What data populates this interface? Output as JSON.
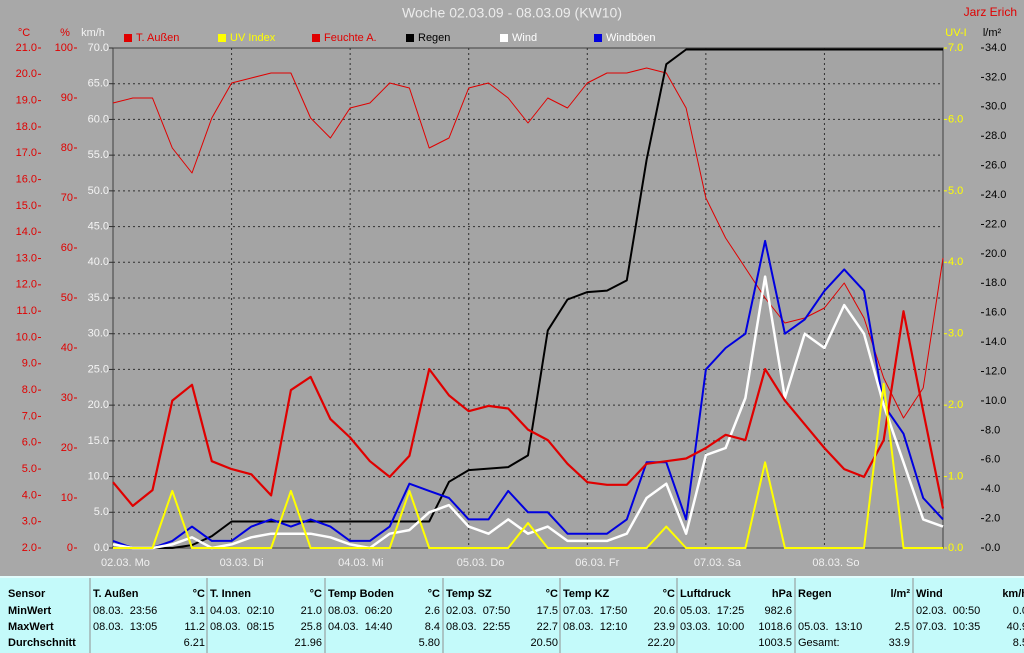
{
  "chart_data": {
    "type": "line",
    "title": "Woche 02.03.09 - 08.03.09 (KW10)",
    "author": "Jarz Erich",
    "grid": true,
    "xlim": [
      0,
      168
    ],
    "xticks": [
      {
        "value": 0,
        "label": "02.03. Mo"
      },
      {
        "value": 24,
        "label": "03.03. Di"
      },
      {
        "value": 48,
        "label": "04.03. Mi"
      },
      {
        "value": 72,
        "label": "05.03. Do"
      },
      {
        "value": 96,
        "label": "06.03. Fr"
      },
      {
        "value": 120,
        "label": "07.03. Sa"
      },
      {
        "value": 144,
        "label": "08.03. So"
      }
    ],
    "axes": {
      "temp": {
        "label": "°C",
        "color": "#e00000",
        "lim": [
          2,
          21
        ],
        "ticks": [
          {
            "value": 2,
            "label": "2.0"
          },
          {
            "value": 3,
            "label": "3.0"
          },
          {
            "value": 4,
            "label": "4.0"
          },
          {
            "value": 5,
            "label": "5.0"
          },
          {
            "value": 6,
            "label": "6.0"
          },
          {
            "value": 7,
            "label": "7.0"
          },
          {
            "value": 8,
            "label": "8.0"
          },
          {
            "value": 9,
            "label": "9.0"
          },
          {
            "value": 10,
            "label": "10.0"
          },
          {
            "value": 11,
            "label": "11.0"
          },
          {
            "value": 12,
            "label": "12.0"
          },
          {
            "value": 13,
            "label": "13.0"
          },
          {
            "value": 14,
            "label": "14.0"
          },
          {
            "value": 15,
            "label": "15.0"
          },
          {
            "value": 16,
            "label": "16.0"
          },
          {
            "value": 17,
            "label": "17.0"
          },
          {
            "value": 18,
            "label": "18.0"
          },
          {
            "value": 19,
            "label": "19.0"
          },
          {
            "value": 20,
            "label": "20.0"
          },
          {
            "value": 21,
            "label": "21.0"
          }
        ]
      },
      "hum": {
        "label": "%",
        "color": "#e00000",
        "lim": [
          0,
          100
        ],
        "ticks": [
          0,
          10,
          20,
          30,
          40,
          50,
          60,
          70,
          80,
          90,
          100
        ]
      },
      "kmh": {
        "label": "km/h",
        "color": "#f4f4f4",
        "lim": [
          0,
          70
        ],
        "ticks": [
          {
            "value": 0,
            "label": "0.0"
          },
          {
            "value": 5,
            "label": "5.0"
          },
          {
            "value": 10,
            "label": "10.0"
          },
          {
            "value": 15,
            "label": "15.0"
          },
          {
            "value": 20,
            "label": "20.0"
          },
          {
            "value": 25,
            "label": "25.0"
          },
          {
            "value": 30,
            "label": "30.0"
          },
          {
            "value": 35,
            "label": "35.0"
          },
          {
            "value": 40,
            "label": "40.0"
          },
          {
            "value": 45,
            "label": "45.0"
          },
          {
            "value": 50,
            "label": "50.0"
          },
          {
            "value": 55,
            "label": "55.0"
          },
          {
            "value": 60,
            "label": "60.0"
          },
          {
            "value": 65,
            "label": "65.0"
          },
          {
            "value": 70,
            "label": "70.0"
          }
        ]
      },
      "uv": {
        "label": "UV-I",
        "color": "#ffff00",
        "lim": [
          0,
          7
        ],
        "ticks": [
          {
            "value": 0,
            "label": "0.0"
          },
          {
            "value": 1,
            "label": "1.0"
          },
          {
            "value": 2,
            "label": "2.0"
          },
          {
            "value": 3,
            "label": "3.0"
          },
          {
            "value": 4,
            "label": "4.0"
          },
          {
            "value": 5,
            "label": "5.0"
          },
          {
            "value": 6,
            "label": "6.0"
          },
          {
            "value": 7,
            "label": "7.0"
          }
        ]
      },
      "rain": {
        "label": "l/m²",
        "color": "#000000",
        "lim": [
          0,
          34
        ],
        "ticks": [
          {
            "value": 0,
            "label": "0.0"
          },
          {
            "value": 2,
            "label": "2.0"
          },
          {
            "value": 4,
            "label": "4.0"
          },
          {
            "value": 6,
            "label": "6.0"
          },
          {
            "value": 8,
            "label": "8.0"
          },
          {
            "value": 10,
            "label": "10.0"
          },
          {
            "value": 12,
            "label": "12.0"
          },
          {
            "value": 14,
            "label": "14.0"
          },
          {
            "value": 16,
            "label": "16.0"
          },
          {
            "value": 18,
            "label": "18.0"
          },
          {
            "value": 20,
            "label": "20.0"
          },
          {
            "value": 22,
            "label": "22.0"
          },
          {
            "value": 24,
            "label": "24.0"
          },
          {
            "value": 26,
            "label": "26.0"
          },
          {
            "value": 28,
            "label": "28.0"
          },
          {
            "value": 30,
            "label": "30.0"
          },
          {
            "value": 32,
            "label": "32.0"
          },
          {
            "value": 34,
            "label": "34.0"
          }
        ]
      }
    },
    "x": [
      0,
      4,
      8,
      12,
      16,
      20,
      24,
      28,
      32,
      36,
      40,
      44,
      48,
      52,
      56,
      60,
      64,
      68,
      72,
      76,
      80,
      84,
      88,
      92,
      96,
      100,
      104,
      108,
      112,
      116,
      120,
      124,
      128,
      132,
      136,
      140,
      144,
      148,
      152,
      156,
      160,
      164,
      168
    ],
    "series": [
      {
        "name": "T. Außen",
        "axis": "temp",
        "color": "#e00000",
        "label_color": "#e00000",
        "width": 2.2,
        "values": [
          4.5,
          3.6,
          4.2,
          7.6,
          8.2,
          5.3,
          5.0,
          4.8,
          4.0,
          8.0,
          8.5,
          6.9,
          6.2,
          5.3,
          4.7,
          5.5,
          8.8,
          7.8,
          7.2,
          7.4,
          7.3,
          6.5,
          6.1,
          5.2,
          4.5,
          4.4,
          4.4,
          5.2,
          5.3,
          5.4,
          5.8,
          6.3,
          6.1,
          8.8,
          7.6,
          6.7,
          5.8,
          5.0,
          4.7,
          6.1,
          11.0,
          7.2,
          3.5
        ]
      },
      {
        "name": "UV Index",
        "axis": "uv",
        "color": "#ffff00",
        "label_color": "#ffff00",
        "width": 2,
        "values": [
          0,
          0,
          0,
          0.8,
          0,
          0,
          0,
          0,
          0,
          0.8,
          0,
          0,
          0,
          0,
          0,
          0.8,
          0,
          0,
          0,
          0,
          0,
          0.35,
          0,
          0,
          0,
          0,
          0,
          0,
          0.3,
          0,
          0,
          0,
          0,
          1.2,
          0,
          0,
          0,
          0,
          0,
          2.3,
          0,
          0,
          0
        ]
      },
      {
        "name": "Feuchte A.",
        "axis": "hum",
        "color": "#e00000",
        "label_color": "#e00000",
        "width": 1,
        "values": [
          89,
          90,
          90,
          80,
          75,
          86,
          93,
          94,
          95,
          95,
          86,
          82,
          88,
          89,
          93,
          92,
          80,
          82,
          92,
          93,
          90,
          85,
          90,
          88,
          93,
          95,
          95,
          96,
          95,
          88,
          70,
          62,
          56,
          50,
          45,
          46,
          48,
          53,
          46,
          34,
          26,
          32,
          58
        ]
      },
      {
        "name": "Regen",
        "axis": "rain",
        "color": "#000000",
        "label_color": "#000000",
        "width": 2,
        "values": [
          0,
          0,
          0,
          0,
          0.2,
          0.8,
          1.8,
          1.8,
          1.8,
          1.8,
          1.8,
          1.8,
          1.8,
          1.8,
          1.8,
          1.8,
          1.8,
          4.5,
          5.3,
          5.4,
          5.5,
          6.3,
          14.8,
          16.9,
          17.4,
          17.5,
          18.2,
          26.4,
          32.9,
          33.9,
          33.9,
          33.9,
          33.9,
          33.9,
          33.9,
          33.9,
          33.9,
          33.9,
          33.9,
          33.9,
          33.9,
          33.9,
          33.9
        ]
      },
      {
        "name": "Wind",
        "axis": "kmh",
        "color": "#ffffff",
        "label_color": "#ffffff",
        "width": 2.5,
        "values": [
          0.5,
          0,
          0,
          0.5,
          1.5,
          0,
          0.5,
          1.5,
          2,
          2,
          2,
          1.5,
          0.5,
          0,
          2,
          2.5,
          5,
          6,
          3,
          2,
          4,
          2,
          3,
          1,
          1,
          1,
          2,
          7,
          9,
          2,
          13,
          14,
          21,
          38,
          21,
          30,
          28,
          34,
          30,
          20,
          12,
          4,
          3
        ]
      },
      {
        "name": "Windböen",
        "axis": "kmh",
        "color": "#0000e0",
        "label_color": "#ffffff",
        "width": 2,
        "values": [
          1,
          0,
          0,
          1,
          3,
          1,
          1,
          3,
          4,
          3,
          4,
          3,
          1,
          1,
          3,
          9,
          8,
          7,
          4,
          4,
          8,
          5,
          5,
          2,
          2,
          2,
          4,
          12,
          12,
          4,
          25,
          28,
          30,
          43,
          30,
          32,
          36,
          39,
          36,
          20,
          16,
          7,
          4
        ]
      }
    ]
  },
  "stats": {
    "row_labels": [
      "Sensor",
      "MinWert",
      "MaxWert",
      "Durchschnitt"
    ],
    "groups": [
      {
        "name": "T. Außen",
        "unit": "°C",
        "min": {
          "time": "08.03.  23:56",
          "value": "3.1"
        },
        "max": {
          "time": "08.03.  13:05",
          "value": "11.2"
        },
        "avg": {
          "value": "6.21"
        }
      },
      {
        "name": "T. Innen",
        "unit": "°C",
        "min": {
          "time": "04.03.  02:10",
          "value": "21.0"
        },
        "max": {
          "time": "08.03.  08:15",
          "value": "25.8"
        },
        "avg": {
          "value": "21.96"
        }
      },
      {
        "name": "Temp Boden",
        "unit": "°C",
        "min": {
          "time": "08.03.  06:20",
          "value": "2.6"
        },
        "max": {
          "time": "04.03.  14:40",
          "value": "8.4"
        },
        "avg": {
          "value": "5.80"
        }
      },
      {
        "name": "Temp SZ",
        "unit": "°C",
        "min": {
          "time": "02.03.  07:50",
          "value": "17.5"
        },
        "max": {
          "time": "08.03.  22:55",
          "value": "22.7"
        },
        "avg": {
          "value": "20.50"
        }
      },
      {
        "name": "Temp KZ",
        "unit": "°C",
        "min": {
          "time": "07.03.  17:50",
          "value": "20.6"
        },
        "max": {
          "time": "08.03.  12:10",
          "value": "23.9"
        },
        "avg": {
          "value": "22.20"
        }
      },
      {
        "name": "Luftdruck",
        "unit": "hPa",
        "min": {
          "time": "05.03.  17:25",
          "value": "982.6"
        },
        "max": {
          "time": "03.03.  10:00",
          "value": "1018.6"
        },
        "avg": {
          "value": "1003.5"
        }
      },
      {
        "name": "Regen",
        "unit": "l/m²",
        "max": {
          "time": "05.03.  13:10",
          "value": "2.5"
        },
        "avg": {
          "label": "Gesamt:",
          "value": "33.9"
        }
      },
      {
        "name": "Wind",
        "unit": "km/h",
        "min": {
          "time": "02.03.  00:50",
          "value": "0.0"
        },
        "max": {
          "time": "07.03.  10:35",
          "value": "40.9"
        },
        "avg": {
          "value": "8.5"
        }
      }
    ]
  }
}
